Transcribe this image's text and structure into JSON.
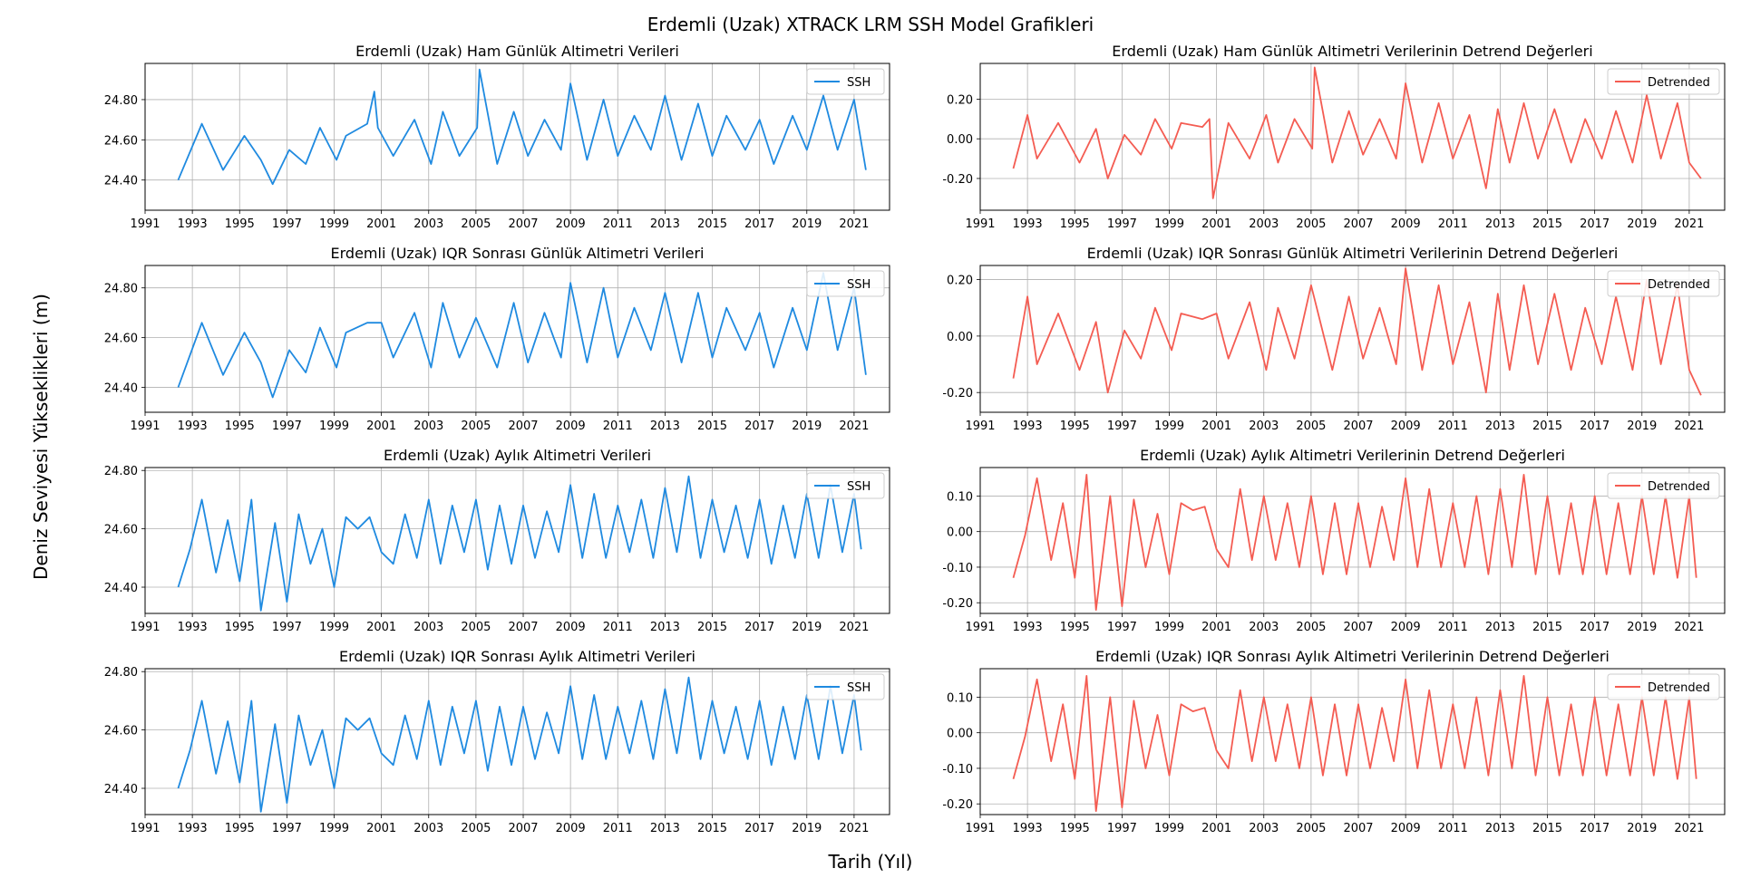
{
  "figure": {
    "title": "Erdemli (Uzak) XTRACK LRM SSH Model Grafikleri",
    "xlabel": "Tarih (Yıl)",
    "ylabel": "Deniz Seviyesi Yükseklikleri (m)"
  },
  "colors": {
    "ssh": "#1f8ae0",
    "detrended": "#f45c52",
    "grid": "#b0b0b0",
    "axes": "#000000"
  },
  "x_ticks": [
    "1991",
    "1993",
    "1995",
    "1997",
    "1999",
    "2001",
    "2003",
    "2005",
    "2007",
    "2009",
    "2011",
    "2013",
    "2015",
    "2017",
    "2019",
    "2021"
  ],
  "chart_data": [
    {
      "type": "line",
      "title": "Erdemli (Uzak) Ham Günlük Altimetri Verileri",
      "legend": "SSH",
      "legend_loc": "top-right",
      "grid": true,
      "color_key": "ssh",
      "x_range": [
        1991,
        2022.5
      ],
      "ylim": [
        24.25,
        24.98
      ],
      "yticks": [
        "24.40",
        "24.60",
        "24.80"
      ],
      "x": [
        1992.4,
        1993.4,
        1994.3,
        1995.2,
        1995.9,
        1996.4,
        1997.1,
        1997.8,
        1998.4,
        1999.1,
        1999.5,
        2000.4,
        2000.7,
        2000.85,
        2001.5,
        2002.4,
        2003.1,
        2003.6,
        2004.3,
        2005.05,
        2005.15,
        2005.9,
        2006.6,
        2007.2,
        2007.9,
        2008.6,
        2009.0,
        2009.7,
        2010.4,
        2011.0,
        2011.7,
        2012.4,
        2013.0,
        2013.7,
        2014.4,
        2015.0,
        2015.6,
        2016.4,
        2017.0,
        2017.6,
        2018.4,
        2019.0,
        2019.7,
        2020.3,
        2021.0,
        2021.5
      ],
      "y": [
        24.4,
        24.68,
        24.45,
        24.62,
        24.5,
        24.38,
        24.55,
        24.48,
        24.66,
        24.5,
        24.62,
        24.68,
        24.84,
        24.66,
        24.52,
        24.7,
        24.48,
        24.74,
        24.52,
        24.66,
        24.95,
        24.48,
        24.74,
        24.52,
        24.7,
        24.55,
        24.88,
        24.5,
        24.8,
        24.52,
        24.72,
        24.55,
        24.82,
        24.5,
        24.78,
        24.52,
        24.72,
        24.55,
        24.7,
        24.48,
        24.72,
        24.55,
        24.82,
        24.55,
        24.8,
        24.45
      ]
    },
    {
      "type": "line",
      "title": "Erdemli (Uzak) Ham Günlük Altimetri Verilerinin Detrend Değerleri",
      "legend": "Detrended",
      "legend_loc": "top-right",
      "grid": true,
      "color_key": "detrended",
      "x_range": [
        1991,
        2022.5
      ],
      "ylim": [
        -0.36,
        0.38
      ],
      "yticks": [
        "-0.20",
        "0.00",
        "0.20"
      ],
      "x": [
        1992.4,
        1993.0,
        1993.4,
        1994.3,
        1995.2,
        1995.9,
        1996.4,
        1997.1,
        1997.8,
        1998.4,
        1999.1,
        1999.5,
        2000.4,
        2000.7,
        2000.85,
        2001.5,
        2002.4,
        2003.1,
        2003.6,
        2004.3,
        2005.05,
        2005.15,
        2005.9,
        2006.6,
        2007.2,
        2007.9,
        2008.6,
        2009.0,
        2009.7,
        2010.4,
        2011.0,
        2011.7,
        2012.4,
        2012.9,
        2013.4,
        2014.0,
        2014.6,
        2015.3,
        2016.0,
        2016.6,
        2017.3,
        2017.9,
        2018.6,
        2019.2,
        2019.8,
        2020.5,
        2021.0,
        2021.5
      ],
      "y": [
        -0.15,
        0.12,
        -0.1,
        0.08,
        -0.12,
        0.05,
        -0.2,
        0.02,
        -0.08,
        0.1,
        -0.05,
        0.08,
        0.06,
        0.1,
        -0.3,
        0.08,
        -0.1,
        0.12,
        -0.12,
        0.1,
        -0.05,
        0.36,
        -0.12,
        0.14,
        -0.08,
        0.1,
        -0.1,
        0.28,
        -0.12,
        0.18,
        -0.1,
        0.12,
        -0.25,
        0.15,
        -0.12,
        0.18,
        -0.1,
        0.15,
        -0.12,
        0.1,
        -0.1,
        0.14,
        -0.12,
        0.22,
        -0.1,
        0.18,
        -0.12,
        -0.2
      ]
    },
    {
      "type": "line",
      "title": "Erdemli (Uzak) IQR Sonrası Günlük Altimetri Verileri",
      "legend": "SSH",
      "legend_loc": "top-right",
      "grid": true,
      "color_key": "ssh",
      "x_range": [
        1991,
        2022.5
      ],
      "ylim": [
        24.3,
        24.89
      ],
      "yticks": [
        "24.40",
        "24.60",
        "24.80"
      ],
      "x": [
        1992.4,
        1993.4,
        1994.3,
        1995.2,
        1995.9,
        1996.4,
        1997.1,
        1997.8,
        1998.4,
        1999.1,
        1999.5,
        2000.4,
        2001.0,
        2001.5,
        2002.4,
        2003.1,
        2003.6,
        2004.3,
        2005.0,
        2005.9,
        2006.6,
        2007.2,
        2007.9,
        2008.6,
        2009.0,
        2009.7,
        2010.4,
        2011.0,
        2011.7,
        2012.4,
        2013.0,
        2013.7,
        2014.4,
        2015.0,
        2015.6,
        2016.4,
        2017.0,
        2017.6,
        2018.4,
        2019.0,
        2019.7,
        2020.3,
        2021.0,
        2021.5
      ],
      "y": [
        24.4,
        24.66,
        24.45,
        24.62,
        24.5,
        24.36,
        24.55,
        24.46,
        24.64,
        24.48,
        24.62,
        24.66,
        24.66,
        24.52,
        24.7,
        24.48,
        24.74,
        24.52,
        24.68,
        24.48,
        24.74,
        24.5,
        24.7,
        24.52,
        24.82,
        24.5,
        24.8,
        24.52,
        24.72,
        24.55,
        24.78,
        24.5,
        24.78,
        24.52,
        24.72,
        24.55,
        24.7,
        24.48,
        24.72,
        24.55,
        24.86,
        24.55,
        24.8,
        24.45
      ]
    },
    {
      "type": "line",
      "title": "Erdemli (Uzak) IQR Sonrası Günlük Altimetri Verilerinin Detrend Değerleri",
      "legend": "Detrended",
      "legend_loc": "top-right",
      "grid": true,
      "color_key": "detrended",
      "x_range": [
        1991,
        2022.5
      ],
      "ylim": [
        -0.27,
        0.25
      ],
      "yticks": [
        "-0.20",
        "0.00",
        "0.20"
      ],
      "x": [
        1992.4,
        1993.0,
        1993.4,
        1994.3,
        1995.2,
        1995.9,
        1996.4,
        1997.1,
        1997.8,
        1998.4,
        1999.1,
        1999.5,
        2000.4,
        2001.0,
        2001.5,
        2002.4,
        2003.1,
        2003.6,
        2004.3,
        2005.0,
        2005.9,
        2006.6,
        2007.2,
        2007.9,
        2008.6,
        2009.0,
        2009.7,
        2010.4,
        2011.0,
        2011.7,
        2012.4,
        2012.9,
        2013.4,
        2014.0,
        2014.6,
        2015.3,
        2016.0,
        2016.6,
        2017.3,
        2017.9,
        2018.6,
        2019.2,
        2019.8,
        2020.5,
        2021.0,
        2021.5
      ],
      "y": [
        -0.15,
        0.14,
        -0.1,
        0.08,
        -0.12,
        0.05,
        -0.2,
        0.02,
        -0.08,
        0.1,
        -0.05,
        0.08,
        0.06,
        0.08,
        -0.08,
        0.12,
        -0.12,
        0.1,
        -0.08,
        0.18,
        -0.12,
        0.14,
        -0.08,
        0.1,
        -0.1,
        0.24,
        -0.12,
        0.18,
        -0.1,
        0.12,
        -0.2,
        0.15,
        -0.12,
        0.18,
        -0.1,
        0.15,
        -0.12,
        0.1,
        -0.1,
        0.14,
        -0.12,
        0.2,
        -0.1,
        0.18,
        -0.12,
        -0.21
      ]
    },
    {
      "type": "line",
      "title": "Erdemli (Uzak) Aylık Altimetri Verileri",
      "legend": "SSH",
      "legend_loc": "top-right",
      "grid": true,
      "color_key": "ssh",
      "x_range": [
        1991,
        2022.5
      ],
      "ylim": [
        24.31,
        24.81
      ],
      "yticks": [
        "24.40",
        "24.60",
        "24.80"
      ],
      "x": [
        1992.4,
        1992.9,
        1993.4,
        1994.0,
        1994.5,
        1995.0,
        1995.5,
        1995.9,
        1996.5,
        1997.0,
        1997.5,
        1998.0,
        1998.5,
        1999.0,
        1999.5,
        2000.0,
        2000.5,
        2001.0,
        2001.5,
        2002.0,
        2002.5,
        2003.0,
        2003.5,
        2004.0,
        2004.5,
        2005.0,
        2005.5,
        2006.0,
        2006.5,
        2007.0,
        2007.5,
        2008.0,
        2008.5,
        2009.0,
        2009.5,
        2010.0,
        2010.5,
        2011.0,
        2011.5,
        2012.0,
        2012.5,
        2013.0,
        2013.5,
        2014.0,
        2014.5,
        2015.0,
        2015.5,
        2016.0,
        2016.5,
        2017.0,
        2017.5,
        2018.0,
        2018.5,
        2019.0,
        2019.5,
        2020.0,
        2020.5,
        2021.0,
        2021.3
      ],
      "y": [
        24.4,
        24.53,
        24.7,
        24.45,
        24.63,
        24.42,
        24.7,
        24.32,
        24.62,
        24.35,
        24.65,
        24.48,
        24.6,
        24.4,
        24.64,
        24.6,
        24.64,
        24.52,
        24.48,
        24.65,
        24.5,
        24.7,
        24.48,
        24.68,
        24.52,
        24.7,
        24.46,
        24.68,
        24.48,
        24.68,
        24.5,
        24.66,
        24.52,
        24.75,
        24.5,
        24.72,
        24.5,
        24.68,
        24.52,
        24.7,
        24.5,
        24.74,
        24.52,
        24.78,
        24.5,
        24.7,
        24.52,
        24.68,
        24.5,
        24.7,
        24.48,
        24.68,
        24.5,
        24.72,
        24.5,
        24.75,
        24.52,
        24.72,
        24.53
      ]
    },
    {
      "type": "line",
      "title": "Erdemli (Uzak) Aylık Altimetri Verilerinin Detrend Değerleri",
      "legend": "Detrended",
      "legend_loc": "top-right",
      "grid": true,
      "color_key": "detrended",
      "x_range": [
        1991,
        2022.5
      ],
      "ylim": [
        -0.23,
        0.18
      ],
      "yticks": [
        "-0.20",
        "-0.10",
        "0.00",
        "0.10"
      ],
      "x": [
        1992.4,
        1992.9,
        1993.4,
        1994.0,
        1994.5,
        1995.0,
        1995.5,
        1995.9,
        1996.5,
        1997.0,
        1997.5,
        1998.0,
        1998.5,
        1999.0,
        1999.5,
        2000.0,
        2000.5,
        2001.0,
        2001.5,
        2002.0,
        2002.5,
        2003.0,
        2003.5,
        2004.0,
        2004.5,
        2005.0,
        2005.5,
        2006.0,
        2006.5,
        2007.0,
        2007.5,
        2008.0,
        2008.5,
        2009.0,
        2009.5,
        2010.0,
        2010.5,
        2011.0,
        2011.5,
        2012.0,
        2012.5,
        2013.0,
        2013.5,
        2014.0,
        2014.5,
        2015.0,
        2015.5,
        2016.0,
        2016.5,
        2017.0,
        2017.5,
        2018.0,
        2018.5,
        2019.0,
        2019.5,
        2020.0,
        2020.5,
        2021.0,
        2021.3
      ],
      "y": [
        -0.13,
        -0.01,
        0.15,
        -0.08,
        0.08,
        -0.13,
        0.16,
        -0.22,
        0.1,
        -0.21,
        0.09,
        -0.1,
        0.05,
        -0.12,
        0.08,
        0.06,
        0.07,
        -0.05,
        -0.1,
        0.12,
        -0.08,
        0.1,
        -0.08,
        0.08,
        -0.1,
        0.1,
        -0.12,
        0.08,
        -0.12,
        0.08,
        -0.1,
        0.07,
        -0.08,
        0.15,
        -0.1,
        0.12,
        -0.1,
        0.08,
        -0.1,
        0.1,
        -0.12,
        0.12,
        -0.1,
        0.16,
        -0.12,
        0.1,
        -0.12,
        0.08,
        -0.12,
        0.1,
        -0.12,
        0.08,
        -0.12,
        0.1,
        -0.12,
        0.1,
        -0.13,
        0.1,
        -0.13
      ]
    },
    {
      "type": "line",
      "title": "Erdemli (Uzak) IQR Sonrası Aylık Altimetri Verileri",
      "legend": "SSH",
      "legend_loc": "top-right",
      "grid": true,
      "color_key": "ssh",
      "x_range": [
        1991,
        2022.5
      ],
      "ylim": [
        24.31,
        24.81
      ],
      "yticks": [
        "24.40",
        "24.60",
        "24.80"
      ],
      "x": [
        1992.4,
        1992.9,
        1993.4,
        1994.0,
        1994.5,
        1995.0,
        1995.5,
        1995.9,
        1996.5,
        1997.0,
        1997.5,
        1998.0,
        1998.5,
        1999.0,
        1999.5,
        2000.0,
        2000.5,
        2001.0,
        2001.5,
        2002.0,
        2002.5,
        2003.0,
        2003.5,
        2004.0,
        2004.5,
        2005.0,
        2005.5,
        2006.0,
        2006.5,
        2007.0,
        2007.5,
        2008.0,
        2008.5,
        2009.0,
        2009.5,
        2010.0,
        2010.5,
        2011.0,
        2011.5,
        2012.0,
        2012.5,
        2013.0,
        2013.5,
        2014.0,
        2014.5,
        2015.0,
        2015.5,
        2016.0,
        2016.5,
        2017.0,
        2017.5,
        2018.0,
        2018.5,
        2019.0,
        2019.5,
        2020.0,
        2020.5,
        2021.0,
        2021.3
      ],
      "y": [
        24.4,
        24.53,
        24.7,
        24.45,
        24.63,
        24.42,
        24.7,
        24.32,
        24.62,
        24.35,
        24.65,
        24.48,
        24.6,
        24.4,
        24.64,
        24.6,
        24.64,
        24.52,
        24.48,
        24.65,
        24.5,
        24.7,
        24.48,
        24.68,
        24.52,
        24.7,
        24.46,
        24.68,
        24.48,
        24.68,
        24.5,
        24.66,
        24.52,
        24.75,
        24.5,
        24.72,
        24.5,
        24.68,
        24.52,
        24.7,
        24.5,
        24.74,
        24.52,
        24.78,
        24.5,
        24.7,
        24.52,
        24.68,
        24.5,
        24.7,
        24.48,
        24.68,
        24.5,
        24.72,
        24.5,
        24.75,
        24.52,
        24.72,
        24.53
      ]
    },
    {
      "type": "line",
      "title": "Erdemli (Uzak) IQR Sonrası Aylık Altimetri Verilerinin Detrend Değerleri",
      "legend": "Detrended",
      "legend_loc": "top-right",
      "grid": true,
      "color_key": "detrended",
      "x_range": [
        1991,
        2022.5
      ],
      "ylim": [
        -0.23,
        0.18
      ],
      "yticks": [
        "-0.20",
        "-0.10",
        "0.00",
        "0.10"
      ],
      "x": [
        1992.4,
        1992.9,
        1993.4,
        1994.0,
        1994.5,
        1995.0,
        1995.5,
        1995.9,
        1996.5,
        1997.0,
        1997.5,
        1998.0,
        1998.5,
        1999.0,
        1999.5,
        2000.0,
        2000.5,
        2001.0,
        2001.5,
        2002.0,
        2002.5,
        2003.0,
        2003.5,
        2004.0,
        2004.5,
        2005.0,
        2005.5,
        2006.0,
        2006.5,
        2007.0,
        2007.5,
        2008.0,
        2008.5,
        2009.0,
        2009.5,
        2010.0,
        2010.5,
        2011.0,
        2011.5,
        2012.0,
        2012.5,
        2013.0,
        2013.5,
        2014.0,
        2014.5,
        2015.0,
        2015.5,
        2016.0,
        2016.5,
        2017.0,
        2017.5,
        2018.0,
        2018.5,
        2019.0,
        2019.5,
        2020.0,
        2020.5,
        2021.0,
        2021.3
      ],
      "y": [
        -0.13,
        -0.01,
        0.15,
        -0.08,
        0.08,
        -0.13,
        0.16,
        -0.22,
        0.1,
        -0.21,
        0.09,
        -0.1,
        0.05,
        -0.12,
        0.08,
        0.06,
        0.07,
        -0.05,
        -0.1,
        0.12,
        -0.08,
        0.1,
        -0.08,
        0.08,
        -0.1,
        0.1,
        -0.12,
        0.08,
        -0.12,
        0.08,
        -0.1,
        0.07,
        -0.08,
        0.15,
        -0.1,
        0.12,
        -0.1,
        0.08,
        -0.1,
        0.1,
        -0.12,
        0.12,
        -0.1,
        0.16,
        -0.12,
        0.1,
        -0.12,
        0.08,
        -0.12,
        0.1,
        -0.12,
        0.08,
        -0.12,
        0.1,
        -0.12,
        0.1,
        -0.13,
        0.1,
        -0.13
      ]
    }
  ]
}
